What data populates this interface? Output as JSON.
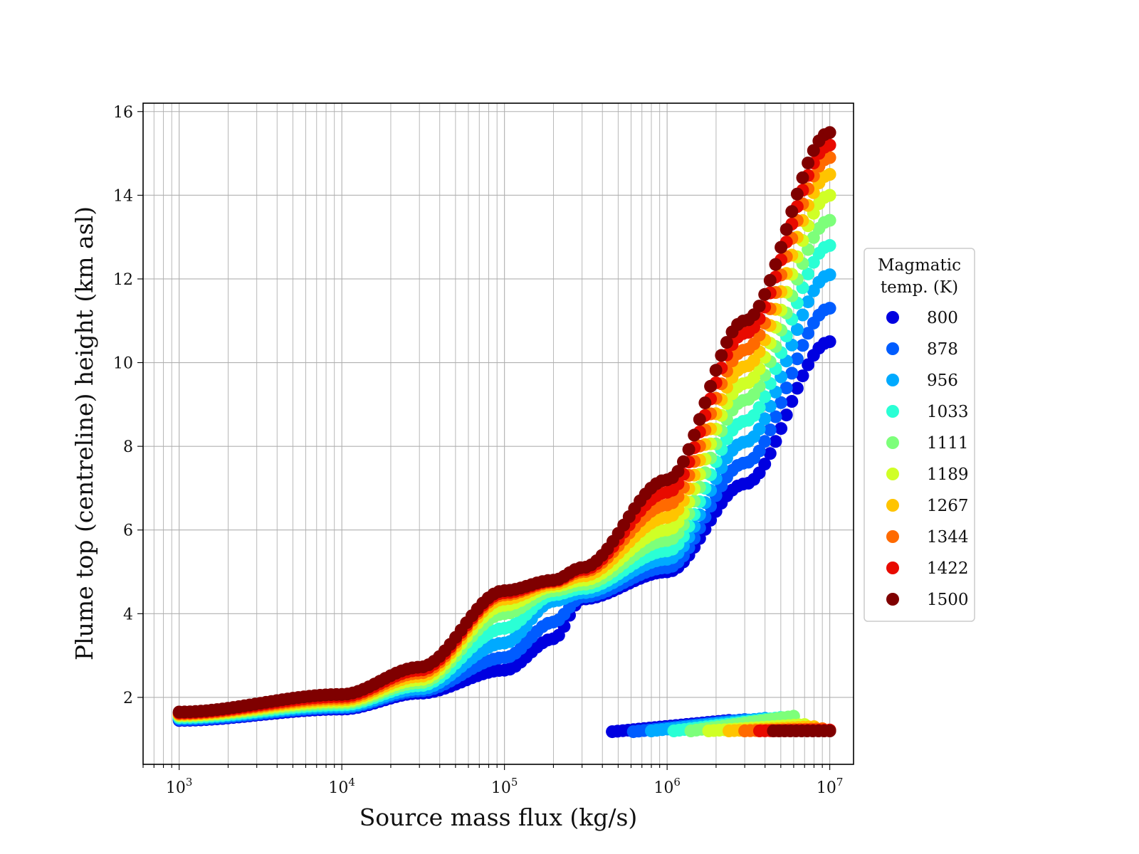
{
  "chart_data": {
    "type": "scatter",
    "title": "",
    "xlabel": "Source mass flux (kg/s)",
    "ylabel": "Plume top (centreline) height (km asl)",
    "xscale": "log",
    "xlim": [
      600,
      14000000
    ],
    "ylim": [
      0.4,
      16.2
    ],
    "x_ticks": [
      {
        "value": 1000,
        "base": "10",
        "exp": "3"
      },
      {
        "value": 10000,
        "base": "10",
        "exp": "4"
      },
      {
        "value": 100000,
        "base": "10",
        "exp": "5"
      },
      {
        "value": 1000000,
        "base": "10",
        "exp": "6"
      },
      {
        "value": 10000000,
        "base": "10",
        "exp": "7"
      }
    ],
    "y_ticks": [
      2,
      4,
      6,
      8,
      10,
      12,
      14,
      16
    ],
    "grid": true,
    "legend": {
      "title_lines": [
        "Magmatic",
        "temp. (K)"
      ],
      "placement": "outside-right"
    },
    "series": [
      {
        "name": "800",
        "color": "#0000e0",
        "x": [
          1000,
          10000,
          30000,
          100000,
          200000,
          300000,
          1000000,
          3000000,
          10000000
        ],
        "y": [
          1.45,
          1.72,
          2.1,
          2.65,
          3.4,
          4.35,
          5.0,
          7.1,
          10.5
        ],
        "collapse_x": [
          460000,
          2400000
        ],
        "collapse_y": [
          1.18,
          1.45
        ]
      },
      {
        "name": "878",
        "color": "#005cff",
        "x": [
          1000,
          10000,
          30000,
          100000,
          200000,
          300000,
          1000000,
          3000000,
          10000000
        ],
        "y": [
          1.47,
          1.75,
          2.15,
          2.95,
          3.8,
          4.4,
          5.1,
          7.6,
          11.3
        ],
        "collapse_x": [
          620000,
          3000000
        ],
        "collapse_y": [
          1.18,
          1.47
        ]
      },
      {
        "name": "956",
        "color": "#00aaff",
        "x": [
          1000,
          10000,
          30000,
          100000,
          200000,
          300000,
          1000000,
          3000000,
          10000000
        ],
        "y": [
          1.5,
          1.78,
          2.2,
          3.3,
          4.3,
          4.5,
          5.3,
          8.1,
          12.1
        ],
        "collapse_x": [
          800000,
          4000000
        ],
        "collapse_y": [
          1.2,
          1.5
        ]
      },
      {
        "name": "1033",
        "color": "#2affd5",
        "x": [
          1000,
          10000,
          30000,
          100000,
          200000,
          300000,
          1000000,
          3000000,
          10000000
        ],
        "y": [
          1.52,
          1.82,
          2.28,
          3.65,
          4.45,
          4.6,
          5.5,
          8.6,
          12.8
        ],
        "collapse_x": [
          1100000,
          5000000
        ],
        "collapse_y": [
          1.2,
          1.52
        ]
      },
      {
        "name": "1111",
        "color": "#7dff7a",
        "x": [
          1000,
          10000,
          30000,
          100000,
          200000,
          300000,
          1000000,
          3000000,
          10000000
        ],
        "y": [
          1.55,
          1.86,
          2.35,
          4.0,
          4.55,
          4.7,
          5.75,
          9.1,
          13.4
        ],
        "collapse_x": [
          1400000,
          6000000
        ],
        "collapse_y": [
          1.2,
          1.55
        ]
      },
      {
        "name": "1189",
        "color": "#d0ff26",
        "x": [
          1000,
          10000,
          30000,
          100000,
          200000,
          300000,
          1000000,
          3000000,
          10000000
        ],
        "y": [
          1.57,
          1.9,
          2.42,
          4.2,
          4.65,
          4.8,
          6.0,
          9.5,
          14.0
        ],
        "collapse_x": [
          1800000,
          7000000
        ],
        "collapse_y": [
          1.2,
          1.35
        ]
      },
      {
        "name": "1267",
        "color": "#ffc400",
        "x": [
          1000,
          10000,
          30000,
          100000,
          200000,
          300000,
          1000000,
          3000000,
          10000000
        ],
        "y": [
          1.59,
          1.94,
          2.5,
          4.35,
          4.7,
          4.9,
          6.3,
          9.9,
          14.5
        ],
        "collapse_x": [
          2400000,
          8000000
        ],
        "collapse_y": [
          1.2,
          1.3
        ]
      },
      {
        "name": "1344",
        "color": "#ff6a00",
        "x": [
          1000,
          10000,
          30000,
          100000,
          200000,
          300000,
          1000000,
          3000000,
          10000000
        ],
        "y": [
          1.61,
          1.98,
          2.58,
          4.45,
          4.75,
          5.0,
          6.6,
          10.3,
          14.9
        ],
        "collapse_x": [
          3000000,
          9000000
        ],
        "collapse_y": [
          1.2,
          1.25
        ]
      },
      {
        "name": "1422",
        "color": "#e80a00",
        "x": [
          1000,
          10000,
          30000,
          100000,
          200000,
          300000,
          1000000,
          3000000,
          10000000
        ],
        "y": [
          1.63,
          2.02,
          2.65,
          4.5,
          4.78,
          5.05,
          6.9,
          10.7,
          15.2
        ],
        "collapse_x": [
          3700000,
          10000000
        ],
        "collapse_y": [
          1.2,
          1.22
        ]
      },
      {
        "name": "1500",
        "color": "#7f0000",
        "x": [
          1000,
          10000,
          30000,
          100000,
          200000,
          300000,
          1000000,
          3000000,
          10000000
        ],
        "y": [
          1.65,
          2.07,
          2.72,
          4.55,
          4.8,
          5.1,
          7.2,
          11.0,
          15.5
        ],
        "collapse_x": [
          4500000,
          10000000
        ],
        "collapse_y": [
          1.2,
          1.2
        ]
      }
    ]
  }
}
